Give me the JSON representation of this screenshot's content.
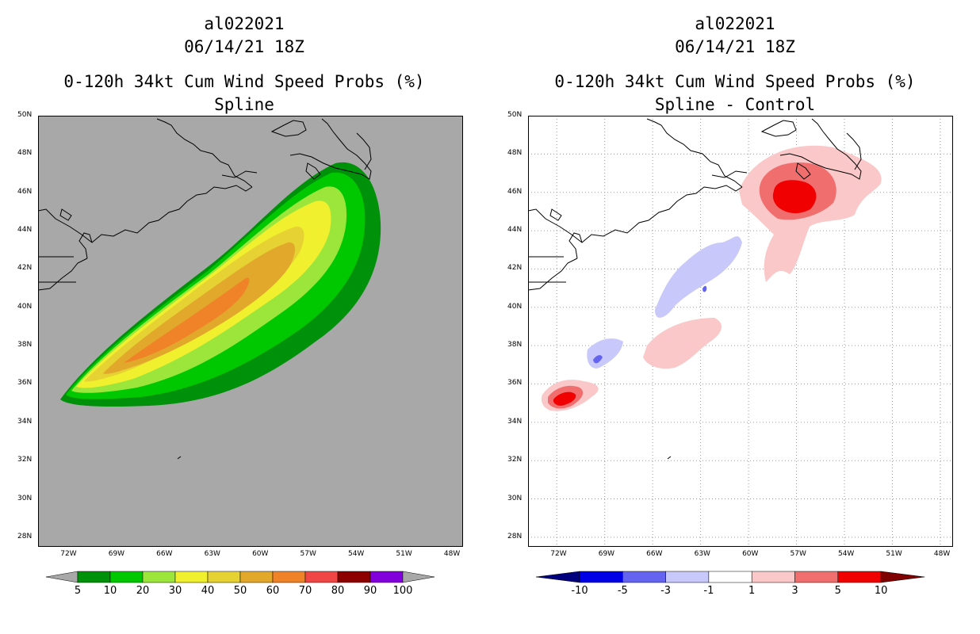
{
  "panels": [
    {
      "storm_id": "al022021",
      "datetime": "06/14/21 18Z",
      "product": "0-120h 34kt Cum Wind Speed Probs (%)",
      "subtitle": "Spline",
      "background": "#a8a8a8",
      "colorbar": {
        "labels": [
          "5",
          "10",
          "20",
          "30",
          "40",
          "50",
          "60",
          "70",
          "80",
          "90",
          "100"
        ],
        "colors": [
          "#00910a",
          "#00c800",
          "#9ce63c",
          "#f0f02e",
          "#e6d232",
          "#e2a82c",
          "#f08228",
          "#f04646",
          "#8c0000",
          "#8200dc"
        ],
        "end_color": "#a8a8a8"
      }
    },
    {
      "storm_id": "al022021",
      "datetime": "06/14/21 18Z",
      "product": "0-120h 34kt Cum Wind Speed Probs (%)",
      "subtitle": "Spline - Control",
      "background": "#ffffff",
      "colorbar": {
        "labels": [
          "-10",
          "-5",
          "-3",
          "-1",
          "1",
          "3",
          "5",
          "10"
        ],
        "colors": [
          "#0000e6",
          "#6464f0",
          "#c8c8fa",
          "#ffffff",
          "#fac8c8",
          "#f06e6e",
          "#f00000"
        ],
        "low_color": "#00007e",
        "high_color": "#7e0000"
      }
    }
  ],
  "axes": {
    "lat_labels": [
      "50N",
      "48N",
      "46N",
      "44N",
      "42N",
      "40N",
      "38N",
      "36N",
      "34N",
      "32N",
      "30N",
      "28N"
    ],
    "lon_labels": [
      "72W",
      "69W",
      "66W",
      "63W",
      "60W",
      "57W",
      "54W",
      "51W",
      "48W"
    ],
    "lat_values": [
      50,
      48,
      46,
      44,
      42,
      40,
      38,
      36,
      34,
      32,
      30,
      28
    ],
    "lon_values": [
      -72,
      -69,
      -66,
      -63,
      -60,
      -57,
      -54,
      -51,
      -48
    ],
    "lon_range": [
      -73.8,
      -47.2
    ],
    "lat_range": [
      27.5,
      50
    ]
  }
}
